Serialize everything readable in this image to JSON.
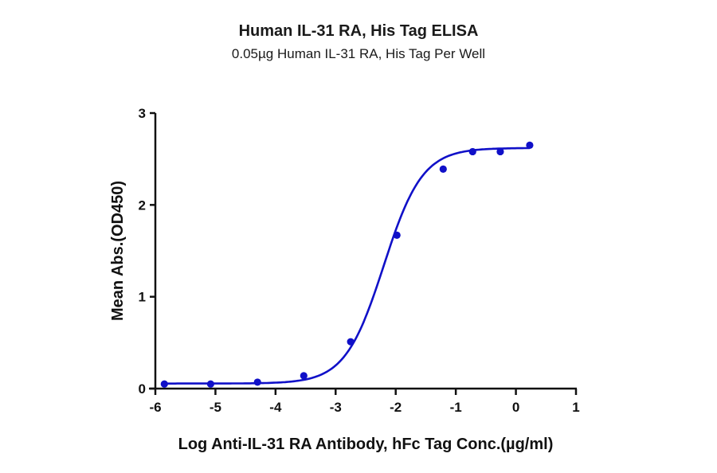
{
  "chart_data": {
    "type": "line",
    "title": "Human IL-31 RA, His Tag ELISA",
    "subtitle": "0.05µg Human IL-31 RA, His Tag Per Well",
    "xlabel": "Log Anti-IL-31 RA Antibody, hFc Tag Conc.(µg/ml)",
    "ylabel": "Mean Abs.(OD450)",
    "xlim": [
      -6,
      1
    ],
    "ylim": [
      0,
      3
    ],
    "xticks": [
      "-6",
      "-5",
      "-4",
      "-3",
      "-2",
      "-1",
      "0",
      "1"
    ],
    "yticks": [
      "0",
      "1",
      "2",
      "3"
    ],
    "grid": false,
    "legend": null,
    "series": [
      {
        "name": "Mean Abs.(OD450)",
        "color": "#1010c8",
        "fit": "4PL sigmoid",
        "x": [
          -5.85,
          -5.08,
          -4.3,
          -3.53,
          -2.75,
          -1.98,
          -1.21,
          -0.72,
          -0.26,
          0.23
        ],
        "y": [
          0.05,
          0.05,
          0.07,
          0.14,
          0.51,
          1.67,
          2.39,
          2.58,
          2.58,
          2.65
        ]
      }
    ]
  }
}
